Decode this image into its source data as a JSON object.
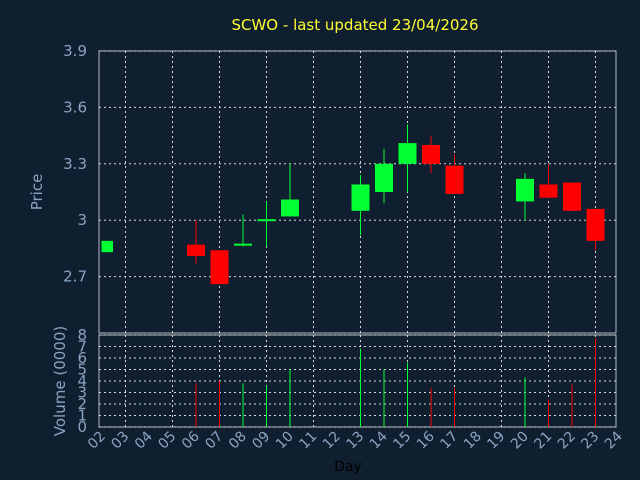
{
  "chart_data": {
    "type": "candlestick",
    "title": "SCWO - last updated 23/04/2026",
    "xlabel": "Day",
    "price_panel": {
      "ylabel": "Price",
      "ylim": [
        2.4,
        3.9
      ],
      "ytick_labels": [
        "2.7",
        "3",
        "3.3",
        "3.6",
        "3.9"
      ],
      "ytick_values": [
        2.7,
        3.0,
        3.3,
        3.6,
        3.9
      ]
    },
    "volume_panel": {
      "ylabel": "Volume (0000)",
      "ylim": [
        0,
        8
      ],
      "ytick_labels": [
        "0",
        "1",
        "2",
        "3",
        "4",
        "5",
        "6",
        "7",
        "8"
      ],
      "ytick_values": [
        0,
        1,
        2,
        3,
        4,
        5,
        6,
        7,
        8
      ]
    },
    "x_tick_labels": [
      "02",
      "03",
      "04",
      "05",
      "06",
      "07",
      "08",
      "09",
      "10",
      "11",
      "12",
      "13",
      "14",
      "15",
      "16",
      "17",
      "18",
      "19",
      "20",
      "21",
      "22",
      "23",
      "24"
    ],
    "candles": [
      {
        "day": "02",
        "open": 2.83,
        "close": 2.89,
        "high": 2.89,
        "low": 2.83
      },
      {
        "day": "06",
        "open": 2.87,
        "close": 2.81,
        "high": 3.0,
        "low": 2.77
      },
      {
        "day": "07",
        "open": 2.84,
        "close": 2.66,
        "high": 2.84,
        "low": 2.66
      },
      {
        "day": "08",
        "open": 2.86,
        "close": 2.87,
        "high": 3.03,
        "low": 2.86
      },
      {
        "day": "09",
        "open": 3.0,
        "close": 3.0,
        "high": 3.1,
        "low": 2.86
      },
      {
        "day": "10",
        "open": 3.02,
        "close": 3.11,
        "high": 3.3,
        "low": 3.02
      },
      {
        "day": "13",
        "open": 3.05,
        "close": 3.19,
        "high": 3.24,
        "low": 2.92
      },
      {
        "day": "14",
        "open": 3.15,
        "close": 3.3,
        "high": 3.38,
        "low": 3.09
      },
      {
        "day": "15",
        "open": 3.3,
        "close": 3.41,
        "high": 3.51,
        "low": 3.15
      },
      {
        "day": "16",
        "open": 3.4,
        "close": 3.3,
        "high": 3.45,
        "low": 3.25
      },
      {
        "day": "17",
        "open": 3.29,
        "close": 3.14,
        "high": 3.35,
        "low": 3.14
      },
      {
        "day": "20",
        "open": 3.1,
        "close": 3.22,
        "high": 3.25,
        "low": 3.0
      },
      {
        "day": "21",
        "open": 3.19,
        "close": 3.12,
        "high": 3.3,
        "low": 3.12
      },
      {
        "day": "22",
        "open": 3.2,
        "close": 3.05,
        "high": 3.2,
        "low": 3.05
      },
      {
        "day": "23",
        "open": 3.06,
        "close": 2.89,
        "high": 3.06,
        "low": 2.84
      }
    ],
    "volume": [
      {
        "day": "02",
        "value": 0
      },
      {
        "day": "06",
        "value": 3.8
      },
      {
        "day": "07",
        "value": 4.0
      },
      {
        "day": "08",
        "value": 3.8
      },
      {
        "day": "09",
        "value": 3.6
      },
      {
        "day": "10",
        "value": 5.0
      },
      {
        "day": "13",
        "value": 6.8
      },
      {
        "day": "14",
        "value": 5.0
      },
      {
        "day": "15",
        "value": 5.6
      },
      {
        "day": "16",
        "value": 3.4
      },
      {
        "day": "17",
        "value": 3.4
      },
      {
        "day": "20",
        "value": 4.3
      },
      {
        "day": "21",
        "value": 2.4
      },
      {
        "day": "22",
        "value": 3.7
      },
      {
        "day": "23",
        "value": 7.7
      }
    ],
    "colors": {
      "up": "#00ff33",
      "down": "#ff0000",
      "background": "#0f1f30",
      "plot_background": "#0f1f30",
      "grid": "#d8d8d8",
      "title": "#ffff33",
      "axis_text": "#8aa4c2"
    },
    "grid": true
  }
}
